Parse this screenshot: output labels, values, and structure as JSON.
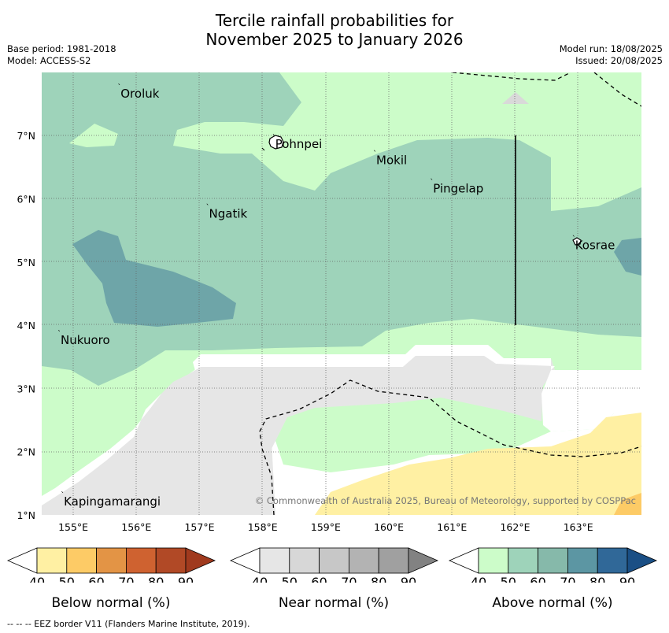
{
  "title_line1": "Tercile rainfall probabilities for",
  "title_line2": "November 2025 to January 2026",
  "base_period": "Base period: 1981-2018",
  "model": "Model: ACCESS-S2",
  "model_run": "Model run: 18/08/2025",
  "issued": "Issued: 20/08/2025",
  "map": {
    "lat_ticks": [
      "1°N",
      "2°N",
      "3°N",
      "4°N",
      "5°N",
      "6°N",
      "7°N"
    ],
    "lon_ticks": [
      "155°E",
      "156°E",
      "157°E",
      "158°E",
      "159°E",
      "160°E",
      "161°E",
      "162°E",
      "163°E"
    ],
    "places": [
      {
        "name": "Oroluk",
        "lon": 155.75,
        "lat": 7.7
      },
      {
        "name": "Pohnpei",
        "lon": 158.2,
        "lat": 6.9
      },
      {
        "name": "Mokil",
        "lon": 159.8,
        "lat": 6.65
      },
      {
        "name": "Pingelap",
        "lon": 160.7,
        "lat": 6.2
      },
      {
        "name": "Ngatik",
        "lon": 157.15,
        "lat": 5.8
      },
      {
        "name": "Kosrae",
        "lon": 162.95,
        "lat": 5.3
      },
      {
        "name": "Nukuoro",
        "lon": 154.8,
        "lat": 3.8
      },
      {
        "name": "Kapingamarangi",
        "lon": 154.85,
        "lat": 1.25
      }
    ],
    "copyright": "© Commonwealth of Australia 2025, Bureau of Meteorology, supported by COSPPac"
  },
  "colorbars": [
    {
      "label": "Below normal (%)",
      "ticks": [
        "40",
        "50",
        "60",
        "70",
        "80",
        "90"
      ],
      "colors": [
        "#fff0a3",
        "#fdcb66",
        "#e39445",
        "#cf6230",
        "#b14926",
        "#a03a1e"
      ]
    },
    {
      "label": "Near normal (%)",
      "ticks": [
        "40",
        "50",
        "60",
        "70",
        "80",
        "90"
      ],
      "colors": [
        "#e6e6e6",
        "#d7d7d7",
        "#c7c7c7",
        "#b3b3b3",
        "#a0a0a0",
        "#828282"
      ]
    },
    {
      "label": "Above normal (%)",
      "ticks": [
        "40",
        "50",
        "60",
        "70",
        "80",
        "90"
      ],
      "colors": [
        "#ccfcc9",
        "#9ed3ba",
        "#86b9aa",
        "#5c96a3",
        "#306898",
        "#1a4f85"
      ]
    }
  ],
  "footnote": "--  --  -- EEZ border V11 (Flanders Marine Institute, 2019)."
}
